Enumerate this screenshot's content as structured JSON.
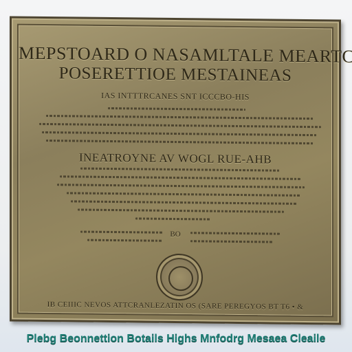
{
  "plaque": {
    "title_line1": "MEPSTOARD O NASAMLTALE   MEARTC",
    "title_line2": "POSERETTIOE   MESTAINEAS",
    "line3": "IAS INTTTRCANES  SNT ICCCBO-HIS",
    "subheading": "INEATROYNE AV WOGL RUE-AHB",
    "tag": "BO",
    "footer": "IB CEIIIC NEVOS ATTCRANLEZATIN OS (SARE PEREGYOS BT T6 • &"
  },
  "caption": "Plebg Beonnettion Botails Highs Mnfodrg Mesaea Cleaile",
  "colors": {
    "plaque": "#94875f",
    "text": "#2e2818",
    "caption": "#1f7f76"
  },
  "icons": {
    "seal": "round-seal-icon"
  }
}
